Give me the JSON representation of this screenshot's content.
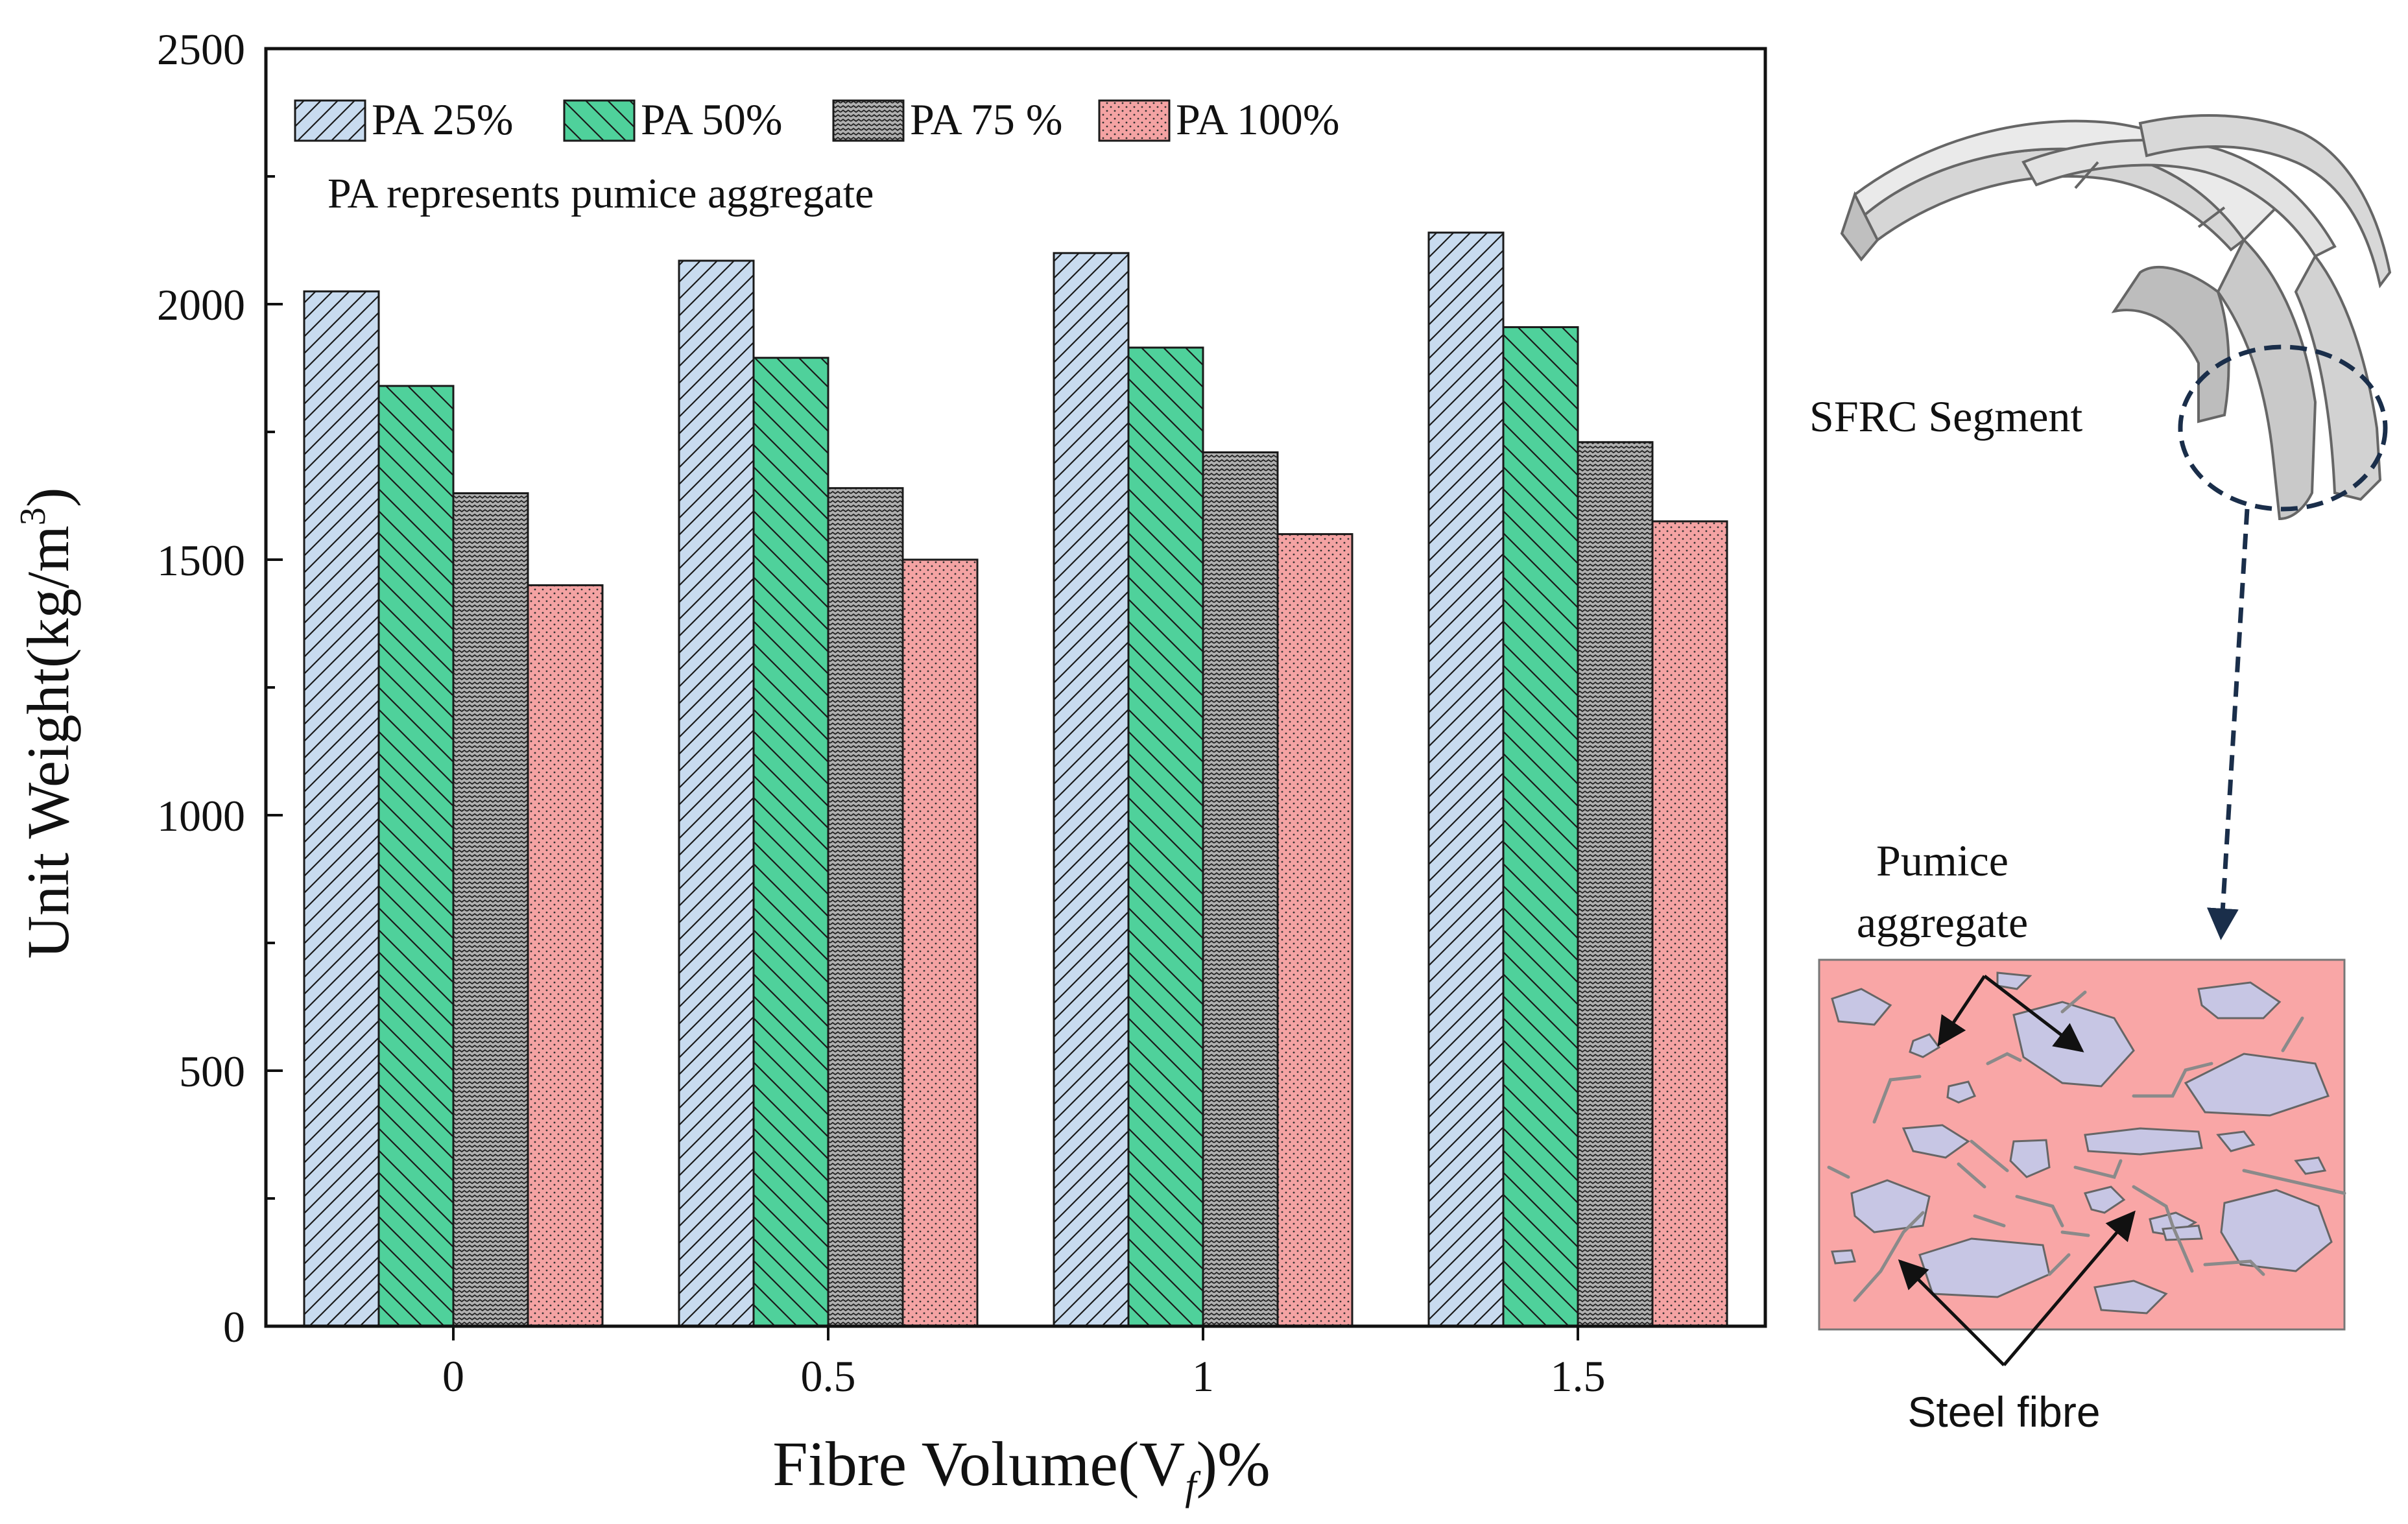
{
  "chart_data": {
    "type": "bar",
    "categories": [
      "0",
      "0.5",
      "1",
      "1.5"
    ],
    "series": [
      {
        "name": "PA 25%",
        "values": [
          2025,
          2085,
          2100,
          2140
        ],
        "color": "#c8dbef",
        "pattern": "hatch-right"
      },
      {
        "name": "PA 50%",
        "values": [
          1840,
          1895,
          1915,
          1955
        ],
        "color": "#4fd19b",
        "pattern": "hatch-left"
      },
      {
        "name": "PA 75 %",
        "values": [
          1630,
          1640,
          1710,
          1730
        ],
        "color": "#b0b0b0",
        "pattern": "wave"
      },
      {
        "name": "PA 100%",
        "values": [
          1450,
          1500,
          1550,
          1575
        ],
        "color": "#f4a3a3",
        "pattern": "dots"
      }
    ],
    "xlabel": "Fibre Volume(V",
    "xlabel_sub": "f",
    "xlabel_suffix": ")%",
    "ylabel": "Unit Weight(kg/m",
    "ylabel_sup": "3",
    "ylabel_suffix": ")",
    "ylim": [
      0,
      2500
    ],
    "yticks": [
      "0",
      "500",
      "1000",
      "1500",
      "2000",
      "2500"
    ],
    "legend_position": "top",
    "annotation": "PA represents pumice aggregate",
    "grid": false
  },
  "illustration": {
    "segment_label": "SFRC Segment",
    "pumice_label_line1": "Pumice",
    "pumice_label_line2": "aggregate",
    "fibre_label": "Steel fibre",
    "matrix_color": "#f9a6a6",
    "aggregate_color": "#c7c6e4",
    "fibre_color": "#8a8a8a",
    "segment_color": "#dcdcdc",
    "circle_color": "#1a2e4a"
  }
}
